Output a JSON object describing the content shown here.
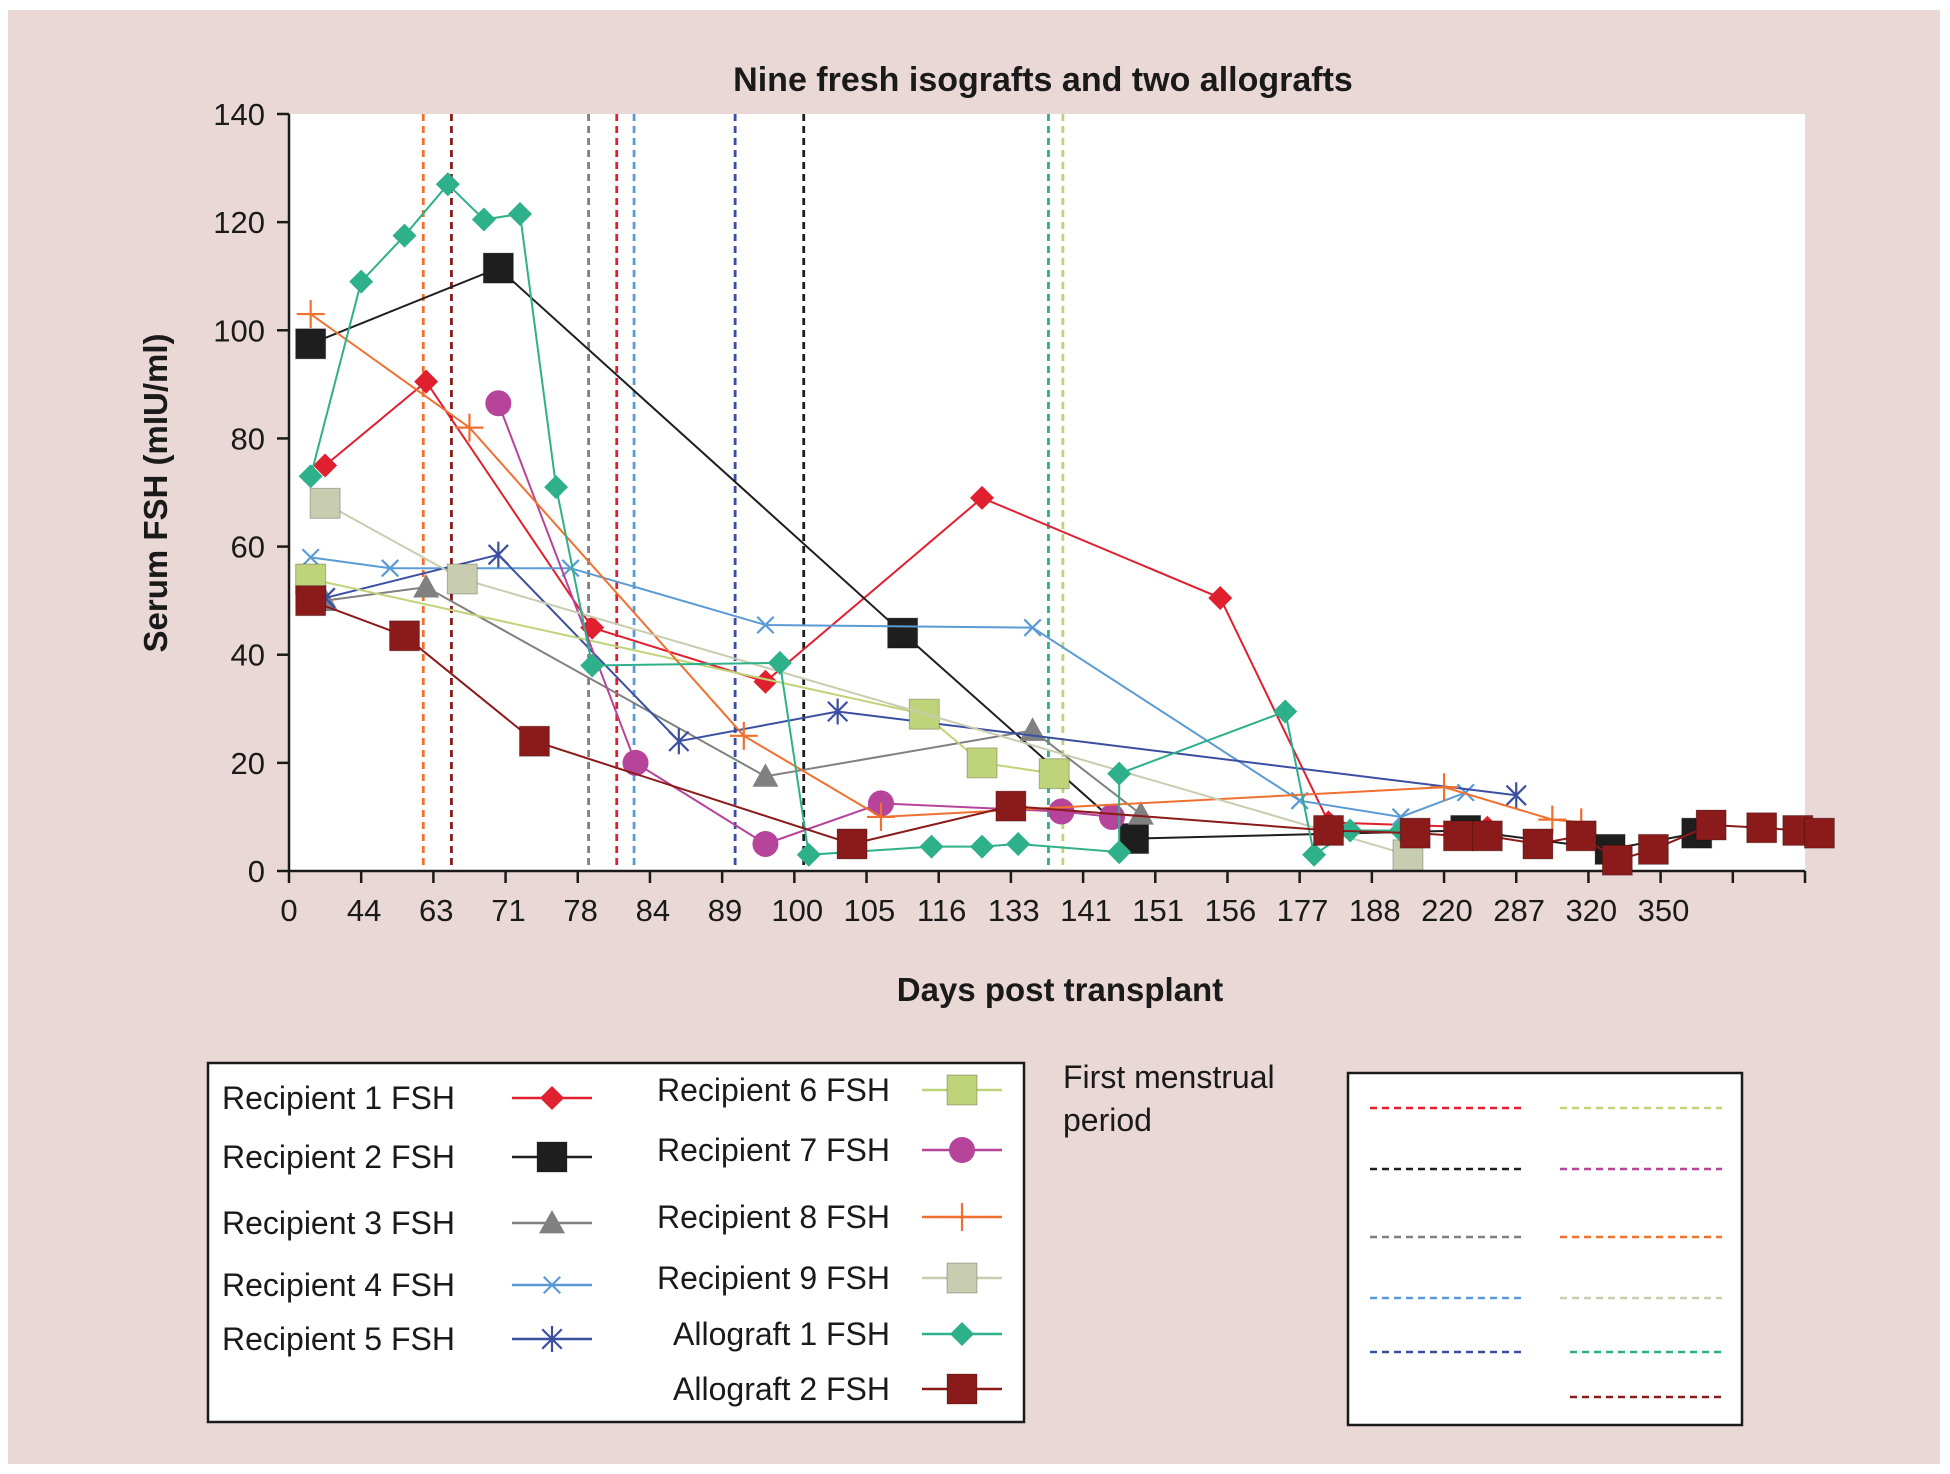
{
  "chart_data": {
    "type": "line",
    "title": "Nine fresh isografts and two allografts",
    "xlabel": "Days post transplant",
    "ylabel": "Serum FSH (mIU/ml)",
    "ylim": [
      0,
      140
    ],
    "yticks": [
      0,
      20,
      40,
      60,
      80,
      100,
      120,
      140
    ],
    "x_axis_note": "categorical axis; 21 slots",
    "xtick_labels": [
      "0",
      "44",
      "63",
      "71",
      "78",
      "84",
      "89",
      "100",
      "105",
      "116",
      "133",
      "141",
      "151",
      "156",
      "177",
      "188",
      "220",
      "287",
      "320",
      "350"
    ],
    "grid": false,
    "legend_placement": "bottom",
    "series": [
      {
        "name": "Recipient 1 FSH",
        "color": "#e0202e",
        "marker": "diamond",
        "x": [
          0.5,
          1.9,
          4.2,
          6.6,
          9.6,
          12.9,
          14.4,
          16.6
        ],
        "y": [
          75,
          90.5,
          45,
          35,
          69,
          50.5,
          9,
          8
        ]
      },
      {
        "name": "Recipient 2 FSH",
        "color": "#1e1e1e",
        "marker": "square",
        "x": [
          0.3,
          2.9,
          8.5,
          11.7,
          16.3,
          18.3,
          19.5
        ],
        "y": [
          97.5,
          111.5,
          44,
          6,
          7.5,
          4,
          7
        ]
      },
      {
        "name": "Recipient 3 FSH",
        "color": "#808080",
        "marker": "triangle",
        "x": [
          0.5,
          1.9,
          6.6,
          10.3,
          11.8
        ],
        "y": [
          50,
          52.5,
          17.5,
          26,
          10.5
        ]
      },
      {
        "name": "Recipient 4 FSH",
        "color": "#5b9bd5",
        "marker": "x",
        "x": [
          0.3,
          1.4,
          3.9,
          6.6,
          10.3,
          14.0,
          15.4,
          16.3
        ],
        "y": [
          58,
          56,
          56,
          45.5,
          45,
          13,
          10,
          14.5
        ]
      },
      {
        "name": "Recipient 5 FSH",
        "color": "#3b4fa0",
        "marker": "star",
        "x": [
          0.5,
          2.9,
          5.4,
          7.6,
          17.0
        ],
        "y": [
          50.5,
          58.5,
          24,
          29.5,
          14
        ]
      },
      {
        "name": "Recipient 6 FSH",
        "color": "#bfd47a",
        "marker": "square",
        "x": [
          0.3,
          8.8,
          9.6,
          10.6
        ],
        "y": [
          54,
          29,
          20,
          18
        ]
      },
      {
        "name": "Recipient 7 FSH",
        "color": "#b5449a",
        "marker": "circle",
        "x": [
          2.9,
          4.8,
          6.6,
          8.2,
          10.7,
          11.4
        ],
        "y": [
          86.5,
          20,
          5,
          12.5,
          11,
          10
        ]
      },
      {
        "name": "Recipient 8 FSH",
        "color": "#f07030",
        "marker": "plus",
        "x": [
          0.3,
          2.5,
          6.3,
          8.2,
          16.0,
          17.5,
          17.9
        ],
        "y": [
          103,
          82,
          25,
          10,
          15.5,
          9.5,
          9
        ]
      },
      {
        "name": "Recipient 9 FSH",
        "color": "#c9cdb0",
        "marker": "square",
        "x": [
          0.5,
          2.4,
          15.5
        ],
        "y": [
          68,
          54,
          3
        ]
      },
      {
        "name": "Allograft 1 FSH",
        "color": "#2eb08a",
        "marker": "diamond",
        "x": [
          0.3,
          1.0,
          1.6,
          2.2,
          2.7,
          3.2,
          3.7,
          4.2,
          6.8,
          7.2,
          8.9,
          9.6,
          10.1,
          11.5,
          11.5,
          13.8,
          14.2,
          14.7,
          15.4
        ],
        "y": [
          73,
          109,
          117.5,
          127,
          120.5,
          121.5,
          71,
          38,
          38.5,
          3,
          4.5,
          4.5,
          5,
          3.5,
          18,
          29.5,
          3,
          7.5,
          7.5
        ]
      },
      {
        "name": "Allograft 2 FSH",
        "color": "#8b1a1a",
        "marker": "square",
        "x": [
          0.3,
          1.6,
          3.4,
          7.8,
          10.0,
          14.4,
          15.6,
          16.2,
          16.6,
          17.3,
          17.9,
          18.4,
          18.9,
          19.7,
          20.4,
          20.9,
          21.2
        ],
        "y": [
          50,
          43.5,
          24,
          5,
          12,
          7.5,
          7,
          6.5,
          6.5,
          5,
          6.5,
          2,
          4,
          8.5,
          8,
          7.5,
          7
        ]
      }
    ],
    "first_menstrual_period_lines": [
      {
        "color": "#e0202e",
        "x": 4.54
      },
      {
        "color": "#1e1e1e",
        "x": 7.13
      },
      {
        "color": "#808080",
        "x": 4.15
      },
      {
        "color": "#5b9bd5",
        "x": 4.78
      },
      {
        "color": "#3b4fa0",
        "x": 6.18
      },
      {
        "color": "#bfd47a",
        "x": 10.72
      },
      {
        "color": "#f07030",
        "x": 1.86
      },
      {
        "color": "#2eb08a",
        "x": 10.52
      },
      {
        "color": "#8b1a1a",
        "x": 2.25
      }
    ]
  },
  "legend": {
    "left_items": [
      {
        "label": "Recipient 1 FSH",
        "color": "#e0202e",
        "marker": "diamond"
      },
      {
        "label": "Recipient 2 FSH",
        "color": "#1e1e1e",
        "marker": "square"
      },
      {
        "label": "Recipient 3 FSH",
        "color": "#808080",
        "marker": "triangle"
      },
      {
        "label": "Recipient 4 FSH",
        "color": "#5b9bd5",
        "marker": "x"
      },
      {
        "label": "Recipient 5 FSH",
        "color": "#3b4fa0",
        "marker": "star"
      }
    ],
    "right_items": [
      {
        "label": "Recipient 6 FSH",
        "color": "#bfd47a",
        "marker": "square"
      },
      {
        "label": "Recipient 7 FSH",
        "color": "#b5449a",
        "marker": "circle"
      },
      {
        "label": "Recipient 8 FSH",
        "color": "#f07030",
        "marker": "plus"
      },
      {
        "label": "Recipient 9 FSH",
        "color": "#c9cdb0",
        "marker": "square"
      },
      {
        "label": "Allograft 1 FSH",
        "color": "#2eb08a",
        "marker": "diamond"
      },
      {
        "label": "Allograft 2 FSH",
        "color": "#8b1a1a",
        "marker": "square"
      }
    ],
    "menstrual_title_line1": "First menstrual",
    "menstrual_title_line2": "period",
    "menstrual_swatches_left": [
      "#e0202e",
      "#1e1e1e",
      "#808080",
      "#5b9bd5",
      "#3b4fa0"
    ],
    "menstrual_swatches_right": [
      "#bfd47a",
      "#b5449a",
      "#f07030",
      "#c9cdb0",
      "#2eb08a",
      "#8b1a1a"
    ]
  }
}
